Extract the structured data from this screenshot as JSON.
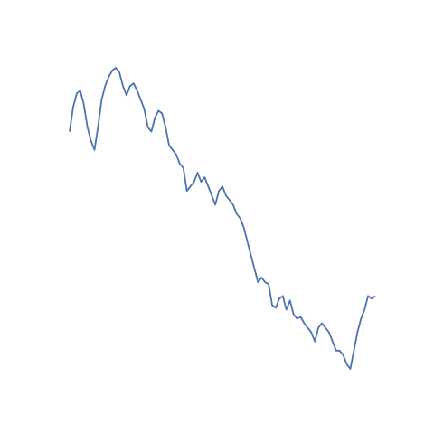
{
  "chart_data": {
    "type": "line",
    "color": "#4c72b0",
    "values": [
      335,
      362,
      377,
      380,
      365,
      340,
      325,
      315,
      340,
      370,
      385,
      395,
      402,
      405,
      400,
      385,
      375,
      385,
      388,
      380,
      370,
      360,
      340,
      335,
      350,
      358,
      355,
      340,
      320,
      315,
      310,
      300,
      295,
      270,
      275,
      280,
      290,
      280,
      285,
      275,
      265,
      255,
      270,
      275,
      265,
      260,
      255,
      245,
      240,
      230,
      215,
      200,
      185,
      170,
      175,
      170,
      168,
      145,
      142,
      152,
      155,
      140,
      150,
      135,
      130,
      132,
      125,
      120,
      115,
      105,
      120,
      125,
      120,
      115,
      105,
      95,
      95,
      90,
      80,
      75,
      95,
      115,
      130,
      140,
      155,
      152,
      155
    ]
  }
}
